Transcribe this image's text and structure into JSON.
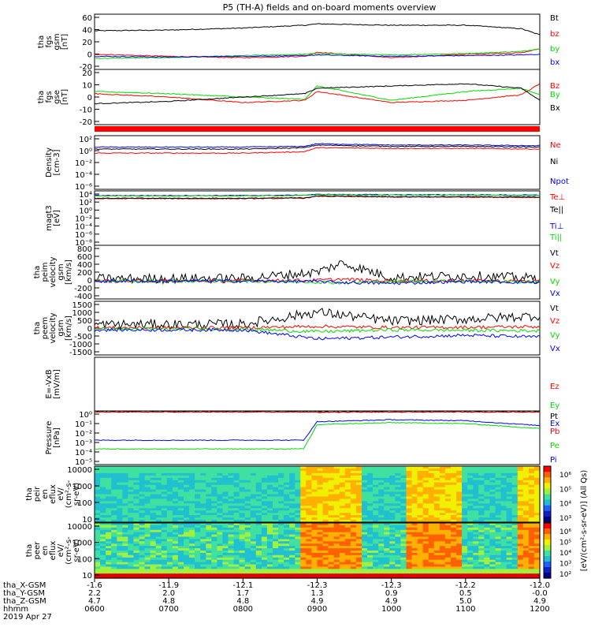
{
  "title": "P5 (TH-A) fields and on-board moments overview",
  "footer_labels": [
    "tha_X-GSM",
    "tha_Y-GSM",
    "tha_Z-GSM",
    "hhmm",
    "2019 Apr 27"
  ],
  "footer_values": [
    [
      "-1.6",
      "2.2",
      "4.7",
      "0600"
    ],
    [
      "-11.9",
      "2.0",
      "4.8",
      "0700"
    ],
    [
      "-12.1",
      "1.7",
      "4.8",
      "0800"
    ],
    [
      "-12.3",
      "1.3",
      "4.9",
      "0900"
    ],
    [
      "-12.3",
      "0.9",
      "4.9",
      "1000"
    ],
    [
      "-12.2",
      "0.5",
      "5.0",
      "1100"
    ],
    [
      "-12.0",
      "-0.0",
      "4.9",
      "1200"
    ]
  ],
  "colors": {
    "black": "#000000",
    "red": "#ff0000",
    "green": "#00dd00",
    "blue": "#0000ff"
  },
  "colorbar": {
    "label": "[eV/(cm²-s-sr-eV)] (All Qs)",
    "panel1_ticks": [
      "10⁶",
      "10⁵",
      "10⁴",
      "10³"
    ],
    "panel2_ticks": [
      "10⁶",
      "10⁵",
      "10⁴",
      "10³",
      "10²"
    ]
  },
  "chart_data": [
    {
      "type": "line",
      "ylabel": [
        "tha",
        "fgs",
        "gsm",
        "[nT]"
      ],
      "yticks": [
        "60",
        "40",
        "20",
        "0",
        "-20"
      ],
      "ylim": [
        -20,
        60
      ],
      "legend": [
        [
          "Bt",
          "black"
        ],
        [
          "bz",
          "red"
        ],
        [
          "by",
          "green"
        ],
        [
          "bx",
          "blue"
        ]
      ],
      "series": [
        {
          "name": "Bt",
          "x": [
            "0600",
            "0700",
            "0800",
            "0850",
            "0900",
            "1000",
            "1100",
            "1145",
            "1200"
          ],
          "values": [
            36,
            37,
            40,
            44,
            46,
            44,
            44,
            39,
            30
          ]
        },
        {
          "name": "bz",
          "x": [
            "0600",
            "0700",
            "0800",
            "0850",
            "0900",
            "1000",
            "1100",
            "1145",
            "1200"
          ],
          "values": [
            2,
            -1,
            -3,
            -1,
            5,
            -3,
            2,
            4,
            10
          ]
        },
        {
          "name": "by",
          "x": [
            "0600",
            "0700",
            "0800",
            "0850",
            "0900",
            "1000",
            "1100",
            "1145",
            "1200"
          ],
          "values": [
            -4,
            -3,
            0,
            2,
            3,
            1,
            3,
            6,
            10
          ]
        },
        {
          "name": "bx",
          "x": [
            "0600",
            "0700",
            "0800",
            "0850",
            "0900",
            "1000",
            "1100",
            "1145",
            "1200"
          ],
          "values": [
            -1,
            -2,
            -1,
            0,
            1,
            -1,
            0,
            1,
            2
          ]
        }
      ]
    },
    {
      "type": "line",
      "ylabel": [
        "tha",
        "fgs",
        "gse",
        "[nT]"
      ],
      "yticks": [
        "20",
        "10",
        "0",
        "-10",
        "-20"
      ],
      "ylim": [
        -25,
        25
      ],
      "legend": [
        [
          "Bz",
          "red"
        ],
        [
          "By",
          "green"
        ],
        [
          "Bx",
          "black"
        ]
      ],
      "series": [
        {
          "name": "Bz",
          "x": [
            "0600",
            "0700",
            "0800",
            "0850",
            "0900",
            "1000",
            "1100",
            "1145",
            "1200"
          ],
          "values": [
            3,
            0,
            -5,
            -3,
            5,
            -5,
            -3,
            2,
            12
          ]
        },
        {
          "name": "By",
          "x": [
            "0600",
            "0700",
            "0800",
            "0850",
            "0900",
            "1000",
            "1100",
            "1145",
            "1200"
          ],
          "values": [
            5,
            3,
            0,
            -2,
            10,
            -3,
            5,
            8,
            2
          ]
        },
        {
          "name": "Bx",
          "x": [
            "0600",
            "0700",
            "0800",
            "0850",
            "0900",
            "1000",
            "1100",
            "1145",
            "1200"
          ],
          "values": [
            -6,
            -4,
            0,
            3,
            8,
            10,
            12,
            8,
            -3
          ]
        }
      ]
    },
    {
      "type": "line",
      "ylabel": [
        "Density",
        "[cm-3]"
      ],
      "yticks": [
        "10²",
        "10⁰",
        "10⁻²",
        "10⁻⁴",
        "10⁻⁶"
      ],
      "ylim": [
        -6,
        2
      ],
      "legend": [
        [
          "Ne",
          "red"
        ],
        [
          "Ni",
          "black"
        ],
        [
          "Npot",
          "blue"
        ]
      ],
      "series": [
        {
          "name": "Ne",
          "x": [
            "0600",
            "0800",
            "0849",
            "0900",
            "1000",
            "1100",
            "1200"
          ],
          "values": [
            -0.6,
            -0.6,
            -0.4,
            0.2,
            0.1,
            0.1,
            0.0
          ]
        },
        {
          "name": "Ni",
          "x": [
            "0600",
            "0800",
            "0849",
            "0900",
            "1000",
            "1100",
            "1200"
          ],
          "values": [
            0.0,
            0.0,
            0.2,
            0.6,
            0.4,
            0.4,
            0.3
          ]
        },
        {
          "name": "Npot",
          "x": [
            "0600",
            "0800",
            "0849",
            "0900",
            "1000",
            "1100",
            "1200"
          ],
          "values": [
            0.3,
            0.3,
            0.4,
            0.8,
            0.6,
            0.6,
            0.5
          ]
        }
      ]
    },
    {
      "type": "line",
      "ylabel": [
        "magt3",
        "[eV]"
      ],
      "yticks": [
        "10⁴",
        "10²",
        "10⁰",
        "10⁻²",
        "10⁻⁴",
        "10⁻⁶",
        "10⁻⁸"
      ],
      "ylim": [
        -9,
        5
      ],
      "legend": [
        [
          "Te⊥",
          "red"
        ],
        [
          "Te||",
          "black"
        ],
        [
          "Ti⊥",
          "blue"
        ],
        [
          "Ti||",
          "green"
        ]
      ],
      "series": [
        {
          "name": "Te⊥",
          "x": [
            "0600",
            "0800",
            "0849",
            "0900",
            "1000",
            "1100",
            "1200"
          ],
          "values": [
            3.0,
            3.0,
            3.1,
            3.6,
            3.4,
            3.4,
            3.3
          ]
        },
        {
          "name": "Te||",
          "x": [
            "0600",
            "0800",
            "0849",
            "0900",
            "1000",
            "1100",
            "1200"
          ],
          "values": [
            3.1,
            3.1,
            3.2,
            3.7,
            3.5,
            3.5,
            3.4
          ]
        },
        {
          "name": "Ti⊥",
          "x": [
            "0600",
            "0800",
            "0849",
            "0900",
            "1000",
            "1100",
            "1200"
          ],
          "values": [
            3.8,
            3.8,
            3.9,
            4.1,
            4.0,
            4.0,
            3.9
          ]
        },
        {
          "name": "Ti||",
          "x": [
            "0600",
            "0800",
            "0849",
            "0900",
            "1000",
            "1100",
            "1200"
          ],
          "values": [
            3.7,
            3.7,
            3.8,
            4.0,
            3.9,
            3.9,
            3.8
          ]
        }
      ]
    },
    {
      "type": "line",
      "ylabel": [
        "tha",
        "peim",
        "velocity",
        "gsm",
        "[km/s]"
      ],
      "yticks": [
        "800",
        "600",
        "400",
        "200",
        "0",
        "-200",
        "-400"
      ],
      "ylim": [
        -400,
        800
      ],
      "legend": [
        [
          "Vt",
          "black"
        ],
        [
          "Vz",
          "red"
        ],
        [
          "Vy",
          "green"
        ],
        [
          "Vx",
          "blue"
        ]
      ],
      "series": [
        {
          "name": "Vt",
          "x": [
            "0600",
            "0800",
            "0900",
            "0920",
            "1000",
            "1100",
            "1200"
          ],
          "values": [
            50,
            60,
            200,
            400,
            80,
            120,
            60
          ]
        },
        {
          "name": "Vz",
          "x": [
            "0600",
            "0800",
            "0900",
            "0920",
            "1000",
            "1100",
            "1200"
          ],
          "values": [
            0,
            10,
            20,
            40,
            0,
            10,
            0
          ]
        },
        {
          "name": "Vy",
          "x": [
            "0600",
            "0800",
            "0900",
            "0920",
            "1000",
            "1100",
            "1200"
          ],
          "values": [
            0,
            0,
            -20,
            -40,
            -10,
            0,
            -20
          ]
        },
        {
          "name": "Vx",
          "x": [
            "0600",
            "0800",
            "0900",
            "0920",
            "1000",
            "1100",
            "1200"
          ],
          "values": [
            0,
            0,
            -10,
            -30,
            -50,
            -10,
            -30
          ]
        }
      ]
    },
    {
      "type": "line",
      "ylabel": [
        "tha",
        "peem",
        "velocity",
        "gsm",
        "[km/s]"
      ],
      "yticks": [
        "1500",
        "1000",
        "500",
        "0",
        "-500",
        "-1000",
        "-1500"
      ],
      "ylim": [
        -1500,
        1500
      ],
      "legend": [
        [
          "Vt",
          "black"
        ],
        [
          "Vz",
          "red"
        ],
        [
          "Vy",
          "green"
        ],
        [
          "Vx",
          "blue"
        ]
      ],
      "series": [
        {
          "name": "Vt",
          "x": [
            "0600",
            "0800",
            "0900",
            "1000",
            "1100",
            "1200"
          ],
          "values": [
            200,
            220,
            900,
            400,
            500,
            700
          ]
        },
        {
          "name": "Vz",
          "x": [
            "0600",
            "0800",
            "0900",
            "1000",
            "1100",
            "1200"
          ],
          "values": [
            20,
            20,
            100,
            30,
            50,
            80
          ]
        },
        {
          "name": "Vy",
          "x": [
            "0600",
            "0800",
            "0900",
            "1000",
            "1100",
            "1200"
          ],
          "values": [
            -50,
            -50,
            -200,
            -100,
            -120,
            -150
          ]
        },
        {
          "name": "Vx",
          "x": [
            "0600",
            "0800",
            "0900",
            "1000",
            "1100",
            "1200"
          ],
          "values": [
            -100,
            -100,
            -600,
            -500,
            -400,
            -500
          ]
        }
      ]
    },
    {
      "type": "line",
      "ylabel": [
        "E=-VxB",
        "[mV/m]"
      ],
      "yticks": [],
      "legend": [
        [
          "Ez",
          "red"
        ],
        [
          "Ey",
          "green"
        ],
        [
          "Ex",
          "blue"
        ]
      ],
      "series": []
    },
    {
      "type": "line",
      "ylabel": [
        "Pressure",
        "[nPa]"
      ],
      "yticks": [
        "10⁰",
        "10⁻¹",
        "10⁻²",
        "10⁻³",
        "10⁻⁴",
        "10⁻⁵"
      ],
      "ylim": [
        -5.5,
        0
      ],
      "legend": [
        [
          "Pt",
          "black"
        ],
        [
          "Pb",
          "red"
        ],
        [
          "Pe",
          "green"
        ],
        [
          "Pi",
          "blue"
        ]
      ],
      "series": [
        {
          "name": "Pt",
          "x": [
            "0600",
            "0849",
            "0900",
            "1000",
            "1100",
            "1200"
          ],
          "values": [
            -0.1,
            -0.1,
            -0.1,
            -0.1,
            -0.1,
            -0.1
          ]
        },
        {
          "name": "Pb",
          "x": [
            "0600",
            "0849",
            "0900",
            "1000",
            "1100",
            "1200"
          ],
          "values": [
            -0.1,
            -0.1,
            -0.15,
            -0.1,
            -0.1,
            -0.1
          ]
        },
        {
          "name": "Pe",
          "x": [
            "0600",
            "0849",
            "0900",
            "1000",
            "1100",
            "1200"
          ],
          "values": [
            -3.9,
            -3.9,
            -1.4,
            -1.2,
            -1.3,
            -1.8
          ]
        },
        {
          "name": "Pi",
          "x": [
            "0600",
            "0849",
            "0900",
            "1000",
            "1100",
            "1200"
          ],
          "values": [
            -3.0,
            -3.0,
            -1.1,
            -0.9,
            -1.0,
            -1.5
          ]
        }
      ]
    },
    {
      "type": "heatmap",
      "ylabel": [
        "tha",
        "peir",
        "en",
        "eflux",
        "eV/",
        "(cm²-s-",
        "sr-eV)"
      ],
      "yticks": [
        "10000",
        "1000",
        "100",
        "10"
      ],
      "ylim": [
        5,
        25000
      ]
    },
    {
      "type": "heatmap",
      "ylabel": [
        "tha",
        "peer",
        "en",
        "eflux",
        "eV/",
        "(cm²-s-",
        "sr-eV)"
      ],
      "yticks": [
        "10000",
        "1000",
        "100",
        "10"
      ],
      "ylim": [
        5,
        25000
      ]
    }
  ]
}
